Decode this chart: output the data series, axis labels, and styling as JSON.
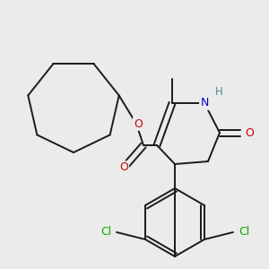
{
  "background_color": "#ebebeb",
  "bond_color": "#1a1a1a",
  "atom_colors": {
    "N": "#0000cc",
    "H": "#4a9090",
    "O": "#cc0000",
    "Cl": "#00aa00",
    "C": "#1a1a1a"
  },
  "figsize": [
    3.0,
    3.0
  ],
  "dpi": 100
}
